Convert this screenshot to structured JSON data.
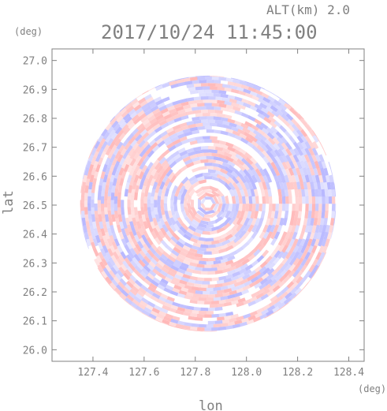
{
  "header": {
    "altitude_label": "ALT(km) 2.0",
    "timestamp": "2017/10/24 11:45:00"
  },
  "chart_data": {
    "type": "heatmap",
    "title": "2017/10/24 11:45:00",
    "xlabel": "lon",
    "ylabel": "lat",
    "x_unit": "(deg)",
    "y_unit": "(deg)",
    "xlim": [
      127.24,
      128.46
    ],
    "ylim": [
      25.96,
      27.04
    ],
    "x_ticks": [
      127.4,
      127.6,
      127.8,
      128.0,
      128.2,
      128.4
    ],
    "x_tick_labels": [
      "127.4",
      "127.6",
      "127.8",
      "128.0",
      "128.2",
      "128.4"
    ],
    "y_ticks": [
      26.0,
      26.1,
      26.2,
      26.3,
      26.4,
      26.5,
      26.6,
      26.7,
      26.8,
      26.9,
      27.0
    ],
    "y_tick_labels": [
      "26.0",
      "26.1",
      "26.2",
      "26.3",
      "26.4",
      "26.5",
      "26.6",
      "26.7",
      "26.8",
      "26.9",
      "27.0"
    ],
    "field": {
      "shape": "circular-radar-sweep",
      "center": [
        127.85,
        26.505
      ],
      "radius_deg": 0.5,
      "positive_color": "#ffb4b4",
      "negative_color": "#b4b4ff",
      "neutral_color": "#ffffff"
    },
    "grid": false
  },
  "colors": {
    "axis": "#808080",
    "text": "#808080"
  }
}
